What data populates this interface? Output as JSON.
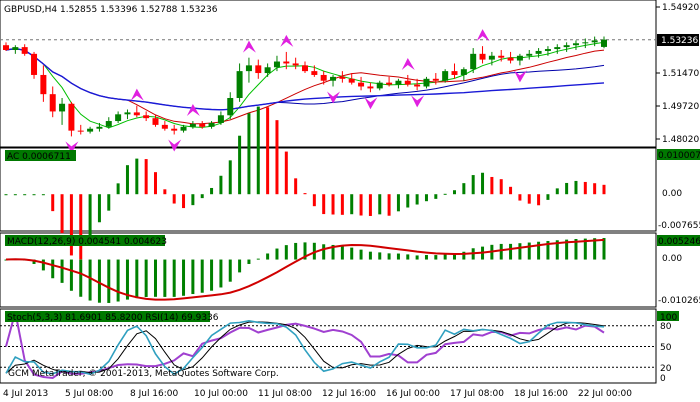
{
  "window": {
    "header": "GBPUSD,H4  1.52855 1.53396 1.52788 1.53236",
    "copyright": "GCM MetaTrader, © 2001-2013, MetaQuotes Software Corp."
  },
  "main": {
    "price_labels": [
      "1.54920",
      "1.53236",
      "1.51470",
      "1.49720",
      "1.48020"
    ],
    "current_price": "1.53236",
    "ylim": [
      1.477,
      1.552
    ]
  },
  "indicators": {
    "ac": {
      "label": "AC 0.0006711",
      "scale": [
        "0.0100071",
        "0.00",
        "-0.007655"
      ],
      "ylim": [
        -0.0085,
        0.0105
      ]
    },
    "macd": {
      "label": "MACD(12,26,9) 0.004541 0.004623",
      "scale": [
        "0.005246",
        "0.00",
        "-0.010265"
      ],
      "ylim": [
        -0.0112,
        0.0058
      ]
    },
    "stoch": {
      "label": "Stoch(5,3,3) 81.6901 85.8200  RSI(14) 69.9336",
      "scale": [
        "100",
        "80",
        "50",
        "20",
        "0"
      ]
    }
  },
  "time_axis": [
    "4 Jul 2013",
    "5 Jul 08:00",
    "8 Jul 16:00",
    "10 Jul 00:00",
    "11 Jul 08:00",
    "12 Jul 16:00",
    "16 Jul 00:00",
    "17 Jul 08:00",
    "18 Jul 16:00",
    "22 Jul 00:00"
  ],
  "colors": {
    "bull": "#008000",
    "bear": "#ff0000",
    "ma_fast": "#00c000",
    "ma_mid": "#cc0000",
    "ma_slow": "#0000aa",
    "ma_long": "#1a1ad6",
    "fractal": "#e020e0",
    "macd_signal": "#d00000",
    "stoch_main": "#30a0c0",
    "stoch_signal": "#000000",
    "rsi": "#a040d0",
    "label_bg": "#007800"
  },
  "chart_data": {
    "type": "candlestick",
    "symbol": "GBPUSD",
    "timeframe": "H4",
    "candles": [
      [
        1.5295,
        1.531,
        1.5265,
        1.527
      ],
      [
        1.527,
        1.5295,
        1.525,
        1.5285
      ],
      [
        1.5285,
        1.53,
        1.524,
        1.525
      ],
      [
        1.525,
        1.526,
        1.512,
        1.514
      ],
      [
        1.514,
        1.519,
        1.5,
        1.504
      ],
      [
        1.504,
        1.508,
        1.492,
        1.495
      ],
      [
        1.495,
        1.502,
        1.488,
        1.499
      ],
      [
        1.499,
        1.5,
        1.482,
        1.485
      ],
      [
        1.485,
        1.488,
        1.483,
        1.4845
      ],
      [
        1.4845,
        1.487,
        1.4835,
        1.486
      ],
      [
        1.486,
        1.489,
        1.4845,
        1.487
      ],
      [
        1.487,
        1.492,
        1.486,
        1.49
      ],
      [
        1.49,
        1.495,
        1.489,
        1.4935
      ],
      [
        1.4935,
        1.496,
        1.491,
        1.4945
      ],
      [
        1.4945,
        1.498,
        1.492,
        1.493
      ],
      [
        1.493,
        1.495,
        1.49,
        1.4915
      ],
      [
        1.4915,
        1.493,
        1.487,
        1.488
      ],
      [
        1.488,
        1.49,
        1.485,
        1.486
      ],
      [
        1.486,
        1.488,
        1.483,
        1.485
      ],
      [
        1.485,
        1.488,
        1.484,
        1.487
      ],
      [
        1.487,
        1.49,
        1.486,
        1.4885
      ],
      [
        1.4885,
        1.49,
        1.486,
        1.487
      ],
      [
        1.487,
        1.49,
        1.486,
        1.489
      ],
      [
        1.489,
        1.495,
        1.488,
        1.493
      ],
      [
        1.493,
        1.505,
        1.491,
        1.502
      ],
      [
        1.502,
        1.52,
        1.5,
        1.516
      ],
      [
        1.516,
        1.523,
        1.51,
        1.519
      ],
      [
        1.519,
        1.522,
        1.512,
        1.515
      ],
      [
        1.515,
        1.52,
        1.513,
        1.518
      ],
      [
        1.518,
        1.524,
        1.516,
        1.521
      ],
      [
        1.521,
        1.526,
        1.517,
        1.52
      ],
      [
        1.52,
        1.523,
        1.517,
        1.519
      ],
      [
        1.519,
        1.521,
        1.515,
        1.516
      ],
      [
        1.516,
        1.519,
        1.513,
        1.514
      ],
      [
        1.514,
        1.516,
        1.509,
        1.511
      ],
      [
        1.511,
        1.514,
        1.508,
        1.513
      ],
      [
        1.513,
        1.516,
        1.51,
        1.512
      ],
      [
        1.512,
        1.515,
        1.509,
        1.51
      ],
      [
        1.51,
        1.513,
        1.506,
        1.508
      ],
      [
        1.508,
        1.51,
        1.505,
        1.507
      ],
      [
        1.507,
        1.511,
        1.506,
        1.51
      ],
      [
        1.51,
        1.513,
        1.508,
        1.509
      ],
      [
        1.509,
        1.512,
        1.507,
        1.511
      ],
      [
        1.511,
        1.514,
        1.508,
        1.509
      ],
      [
        1.509,
        1.512,
        1.506,
        1.508
      ],
      [
        1.508,
        1.513,
        1.507,
        1.512
      ],
      [
        1.512,
        1.515,
        1.509,
        1.511
      ],
      [
        1.511,
        1.517,
        1.51,
        1.516
      ],
      [
        1.516,
        1.52,
        1.512,
        1.514
      ],
      [
        1.514,
        1.518,
        1.511,
        1.517
      ],
      [
        1.517,
        1.528,
        1.515,
        1.525
      ],
      [
        1.525,
        1.529,
        1.52,
        1.522
      ],
      [
        1.522,
        1.526,
        1.519,
        1.524
      ],
      [
        1.524,
        1.527,
        1.521,
        1.523
      ],
      [
        1.523,
        1.526,
        1.52,
        1.5215
      ],
      [
        1.5215,
        1.525,
        1.519,
        1.524
      ],
      [
        1.524,
        1.527,
        1.522,
        1.525
      ],
      [
        1.525,
        1.528,
        1.523,
        1.5265
      ],
      [
        1.5265,
        1.529,
        1.524,
        1.5275
      ],
      [
        1.5275,
        1.53,
        1.525,
        1.5285
      ],
      [
        1.5285,
        1.531,
        1.526,
        1.5295
      ],
      [
        1.5295,
        1.532,
        1.527,
        1.5305
      ],
      [
        1.5305,
        1.533,
        1.528,
        1.531
      ],
      [
        1.531,
        1.534,
        1.529,
        1.532
      ],
      [
        1.5286,
        1.534,
        1.5279,
        1.5324
      ]
    ]
  }
}
